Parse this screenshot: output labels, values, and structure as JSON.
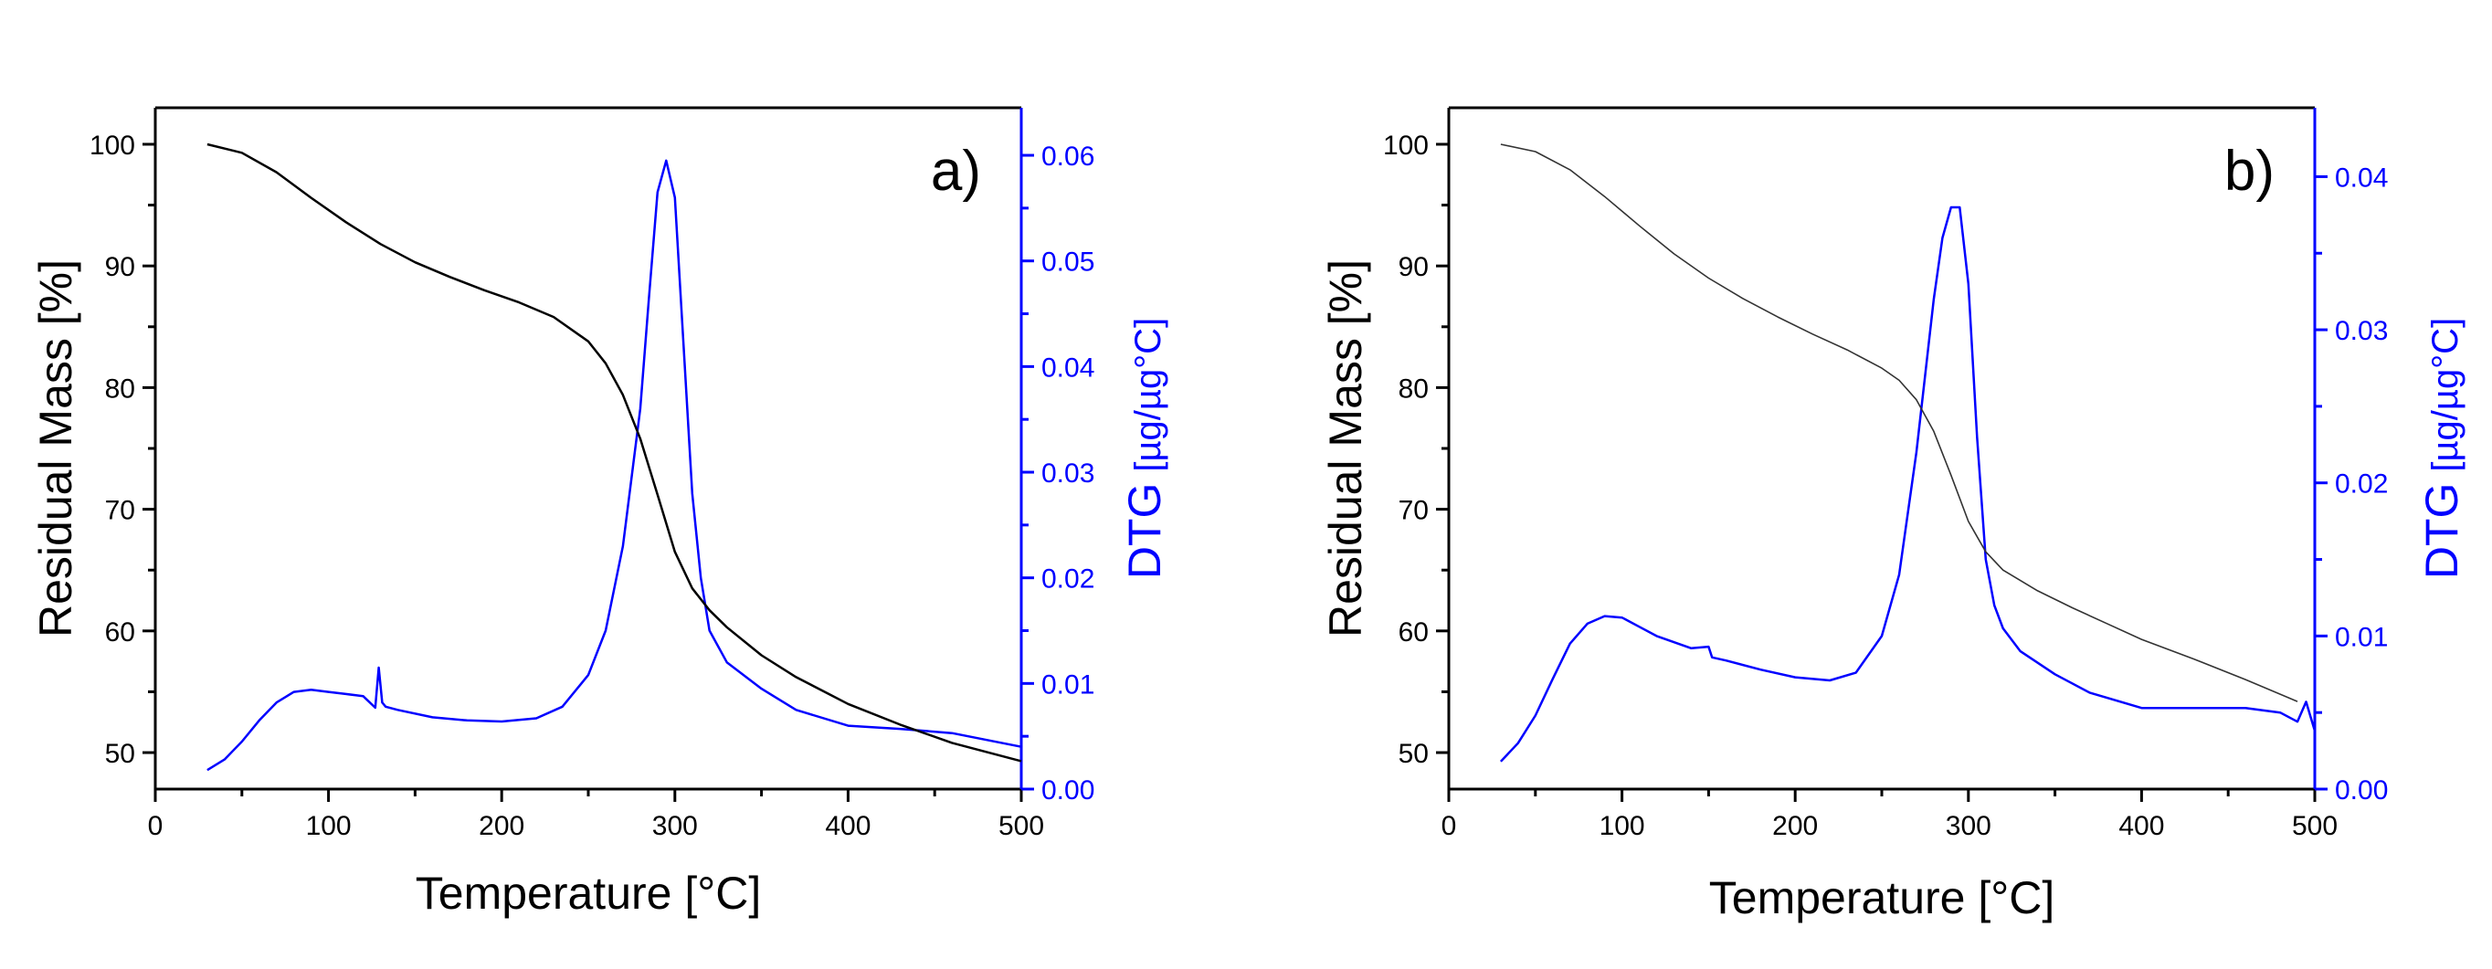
{
  "chart_data": [
    {
      "type": "line",
      "panel_label": "a)",
      "xlabel": "Temperature [°C]",
      "ylabel_left": "Residual Mass [%]",
      "ylabel_right_main": "DTG",
      "ylabel_right_unit": "[µg/µg°C]",
      "xlim": [
        0,
        500
      ],
      "ylim_left": [
        47,
        103
      ],
      "ylim_right": [
        0,
        0.0645
      ],
      "x_ticks": [
        0,
        100,
        200,
        300,
        400,
        500
      ],
      "y_left_ticks": [
        50,
        60,
        70,
        80,
        90,
        100
      ],
      "y_right_ticks": [
        0.0,
        0.01,
        0.02,
        0.03,
        0.04,
        0.05,
        0.06
      ],
      "y_right_tick_labels": [
        "0.00",
        "0.01",
        "0.02",
        "0.03",
        "0.04",
        "0.05",
        "0.06"
      ],
      "colors": {
        "mass": "#000000",
        "dtg": "#0000ff",
        "axis": "#000000",
        "right_axis": "#0000ff"
      },
      "series": [
        {
          "name": "Residual Mass",
          "axis": "left",
          "x": [
            30,
            50,
            70,
            90,
            110,
            130,
            150,
            170,
            190,
            210,
            230,
            250,
            260,
            270,
            280,
            290,
            300,
            310,
            320,
            330,
            350,
            370,
            400,
            430,
            460,
            500
          ],
          "values": [
            100,
            99.3,
            97.7,
            95.6,
            93.6,
            91.8,
            90.3,
            89.1,
            88.0,
            87.0,
            85.8,
            83.8,
            82.0,
            79.4,
            75.8,
            71.2,
            66.5,
            63.5,
            61.7,
            60.3,
            58.0,
            56.2,
            54.0,
            52.3,
            50.8,
            49.3
          ]
        },
        {
          "name": "DTG",
          "axis": "right",
          "x": [
            30,
            40,
            50,
            60,
            70,
            80,
            90,
            100,
            110,
            120,
            127,
            129,
            131,
            133,
            140,
            160,
            180,
            200,
            220,
            235,
            250,
            260,
            270,
            280,
            285,
            290,
            295,
            300,
            305,
            310,
            315,
            320,
            330,
            350,
            370,
            400,
            430,
            460,
            500
          ],
          "values": [
            0.0018,
            0.0028,
            0.0045,
            0.0065,
            0.0082,
            0.0092,
            0.0094,
            0.0092,
            0.009,
            0.0088,
            0.0077,
            0.0115,
            0.0082,
            0.0078,
            0.0075,
            0.0068,
            0.0065,
            0.0064,
            0.0067,
            0.0078,
            0.0108,
            0.015,
            0.023,
            0.036,
            0.0465,
            0.0565,
            0.0595,
            0.056,
            0.042,
            0.028,
            0.02,
            0.015,
            0.012,
            0.0095,
            0.0075,
            0.006,
            0.0057,
            0.0053,
            0.004
          ]
        }
      ]
    },
    {
      "type": "line",
      "panel_label": "b)",
      "xlabel": "Temperature [°C]",
      "ylabel_left": "Residual Mass [%]",
      "ylabel_right_main": "DTG",
      "ylabel_right_unit": "[µg/µg°C]",
      "xlim": [
        0,
        500
      ],
      "ylim_left": [
        47,
        103
      ],
      "ylim_right": [
        0,
        0.0445
      ],
      "x_ticks": [
        0,
        100,
        200,
        300,
        400,
        500
      ],
      "y_left_ticks": [
        50,
        60,
        70,
        80,
        90,
        100
      ],
      "y_right_ticks": [
        0.0,
        0.01,
        0.02,
        0.03,
        0.04
      ],
      "y_right_tick_labels": [
        "0.00",
        "0.01",
        "0.02",
        "0.03",
        "0.04"
      ],
      "colors": {
        "mass": "#000000",
        "dtg": "#0000ff",
        "axis": "#000000",
        "right_axis": "#0000ff"
      },
      "series": [
        {
          "name": "Residual Mass",
          "axis": "left",
          "x": [
            30,
            50,
            70,
            90,
            110,
            130,
            150,
            170,
            190,
            210,
            230,
            250,
            260,
            270,
            280,
            290,
            300,
            310,
            320,
            340,
            360,
            380,
            400,
            430,
            460,
            490
          ],
          "values": [
            100,
            99.4,
            97.9,
            95.7,
            93.3,
            91.0,
            89.0,
            87.3,
            85.8,
            84.4,
            83.1,
            81.6,
            80.6,
            79.0,
            76.4,
            72.8,
            69.0,
            66.5,
            65.0,
            63.3,
            61.9,
            60.6,
            59.3,
            57.7,
            56.0,
            54.2
          ]
        },
        {
          "name": "DTG",
          "axis": "right",
          "x": [
            30,
            40,
            50,
            60,
            70,
            80,
            90,
            100,
            110,
            120,
            140,
            150,
            152,
            160,
            180,
            200,
            220,
            235,
            250,
            260,
            270,
            280,
            285,
            290,
            295,
            300,
            305,
            310,
            315,
            320,
            330,
            350,
            370,
            400,
            430,
            460,
            480,
            490,
            495,
            500
          ],
          "values": [
            0.0018,
            0.003,
            0.0048,
            0.0072,
            0.0095,
            0.0108,
            0.0113,
            0.0112,
            0.0106,
            0.01,
            0.0092,
            0.0093,
            0.0086,
            0.0084,
            0.0078,
            0.0073,
            0.0071,
            0.0076,
            0.01,
            0.014,
            0.022,
            0.032,
            0.036,
            0.038,
            0.038,
            0.033,
            0.023,
            0.015,
            0.012,
            0.0105,
            0.009,
            0.0075,
            0.0063,
            0.0053,
            0.0053,
            0.0053,
            0.005,
            0.0044,
            0.0057,
            0.0038
          ]
        }
      ]
    }
  ]
}
